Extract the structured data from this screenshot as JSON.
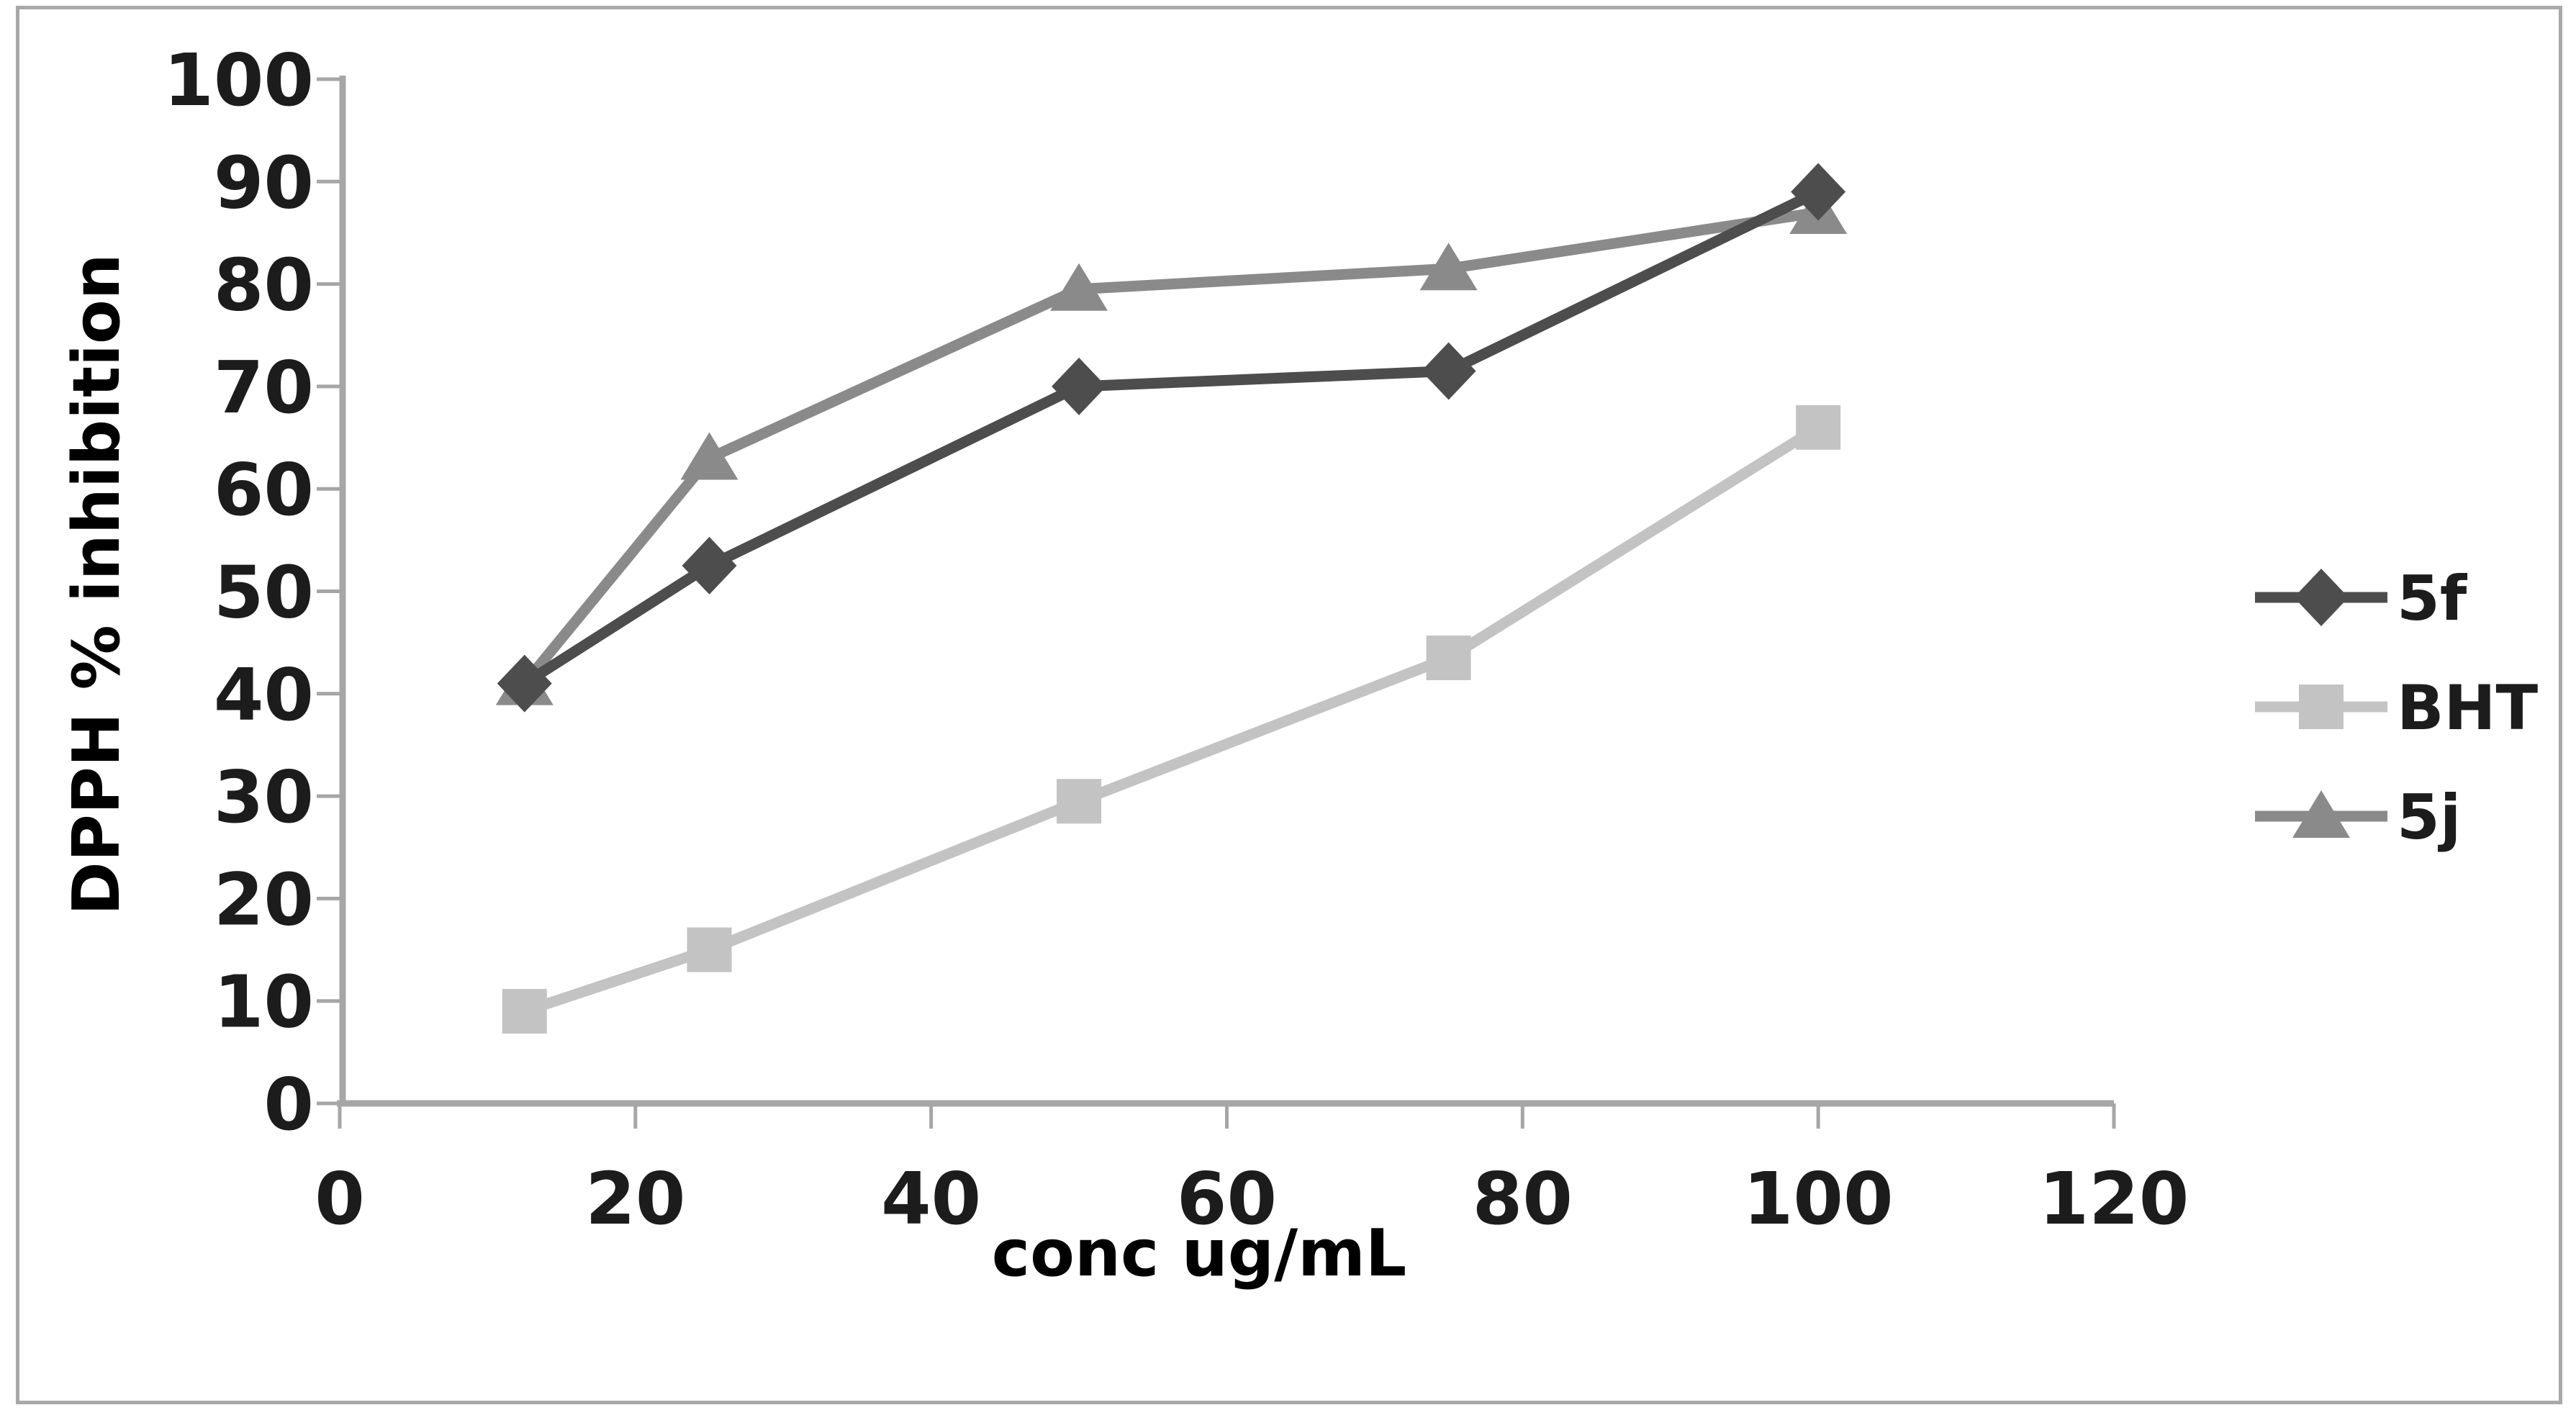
{
  "chart_data": {
    "type": "line",
    "title": "",
    "xlabel": "conc ug/mL",
    "ylabel": "DPPH % inhibition",
    "x": [
      12.5,
      25,
      50,
      75,
      100
    ],
    "series": [
      {
        "name": "5f",
        "marker": "diamond",
        "color": "#4d4d4d",
        "values": [
          41,
          52.5,
          70,
          71.5,
          89
        ]
      },
      {
        "name": "BHT",
        "marker": "square",
        "color": "#c3c3c3",
        "values": [
          9,
          15,
          29.5,
          43.5,
          66
        ]
      },
      {
        "name": "5j",
        "marker": "triangle",
        "color": "#8a8a8a",
        "values": [
          41,
          63,
          79.5,
          81.5,
          87
        ]
      }
    ],
    "x_ticks": [
      0,
      20,
      40,
      60,
      80,
      100,
      120
    ],
    "y_ticks": [
      0,
      10,
      20,
      30,
      40,
      50,
      60,
      70,
      80,
      90,
      100
    ],
    "xlim": [
      0,
      120
    ],
    "ylim": [
      0,
      100
    ],
    "grid": false,
    "legend_position": "right",
    "legend": [
      "5f",
      "BHT",
      "5j"
    ],
    "colors": {
      "axis": "#a6a6a6",
      "text": "#1c1c1c",
      "frame": "#a8a8a8",
      "background": "#ffffff"
    }
  }
}
